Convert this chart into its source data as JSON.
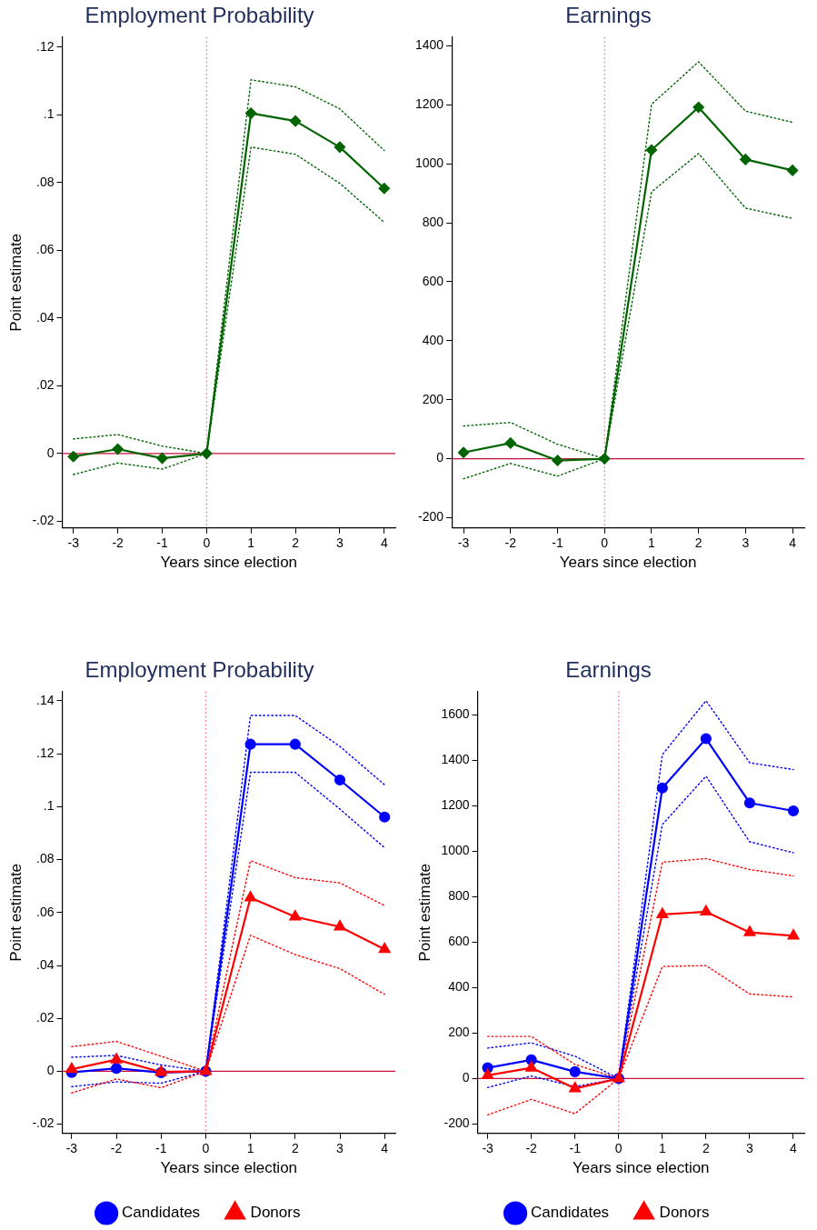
{
  "chart_data": [
    {
      "type": "line",
      "title": "Employment Probability",
      "xlabel": "Years since election",
      "ylabel": "Point estimate",
      "x": [
        -3,
        -2,
        -1,
        0,
        1,
        2,
        3,
        4
      ],
      "xlim": [
        -3.25,
        4.25
      ],
      "xticks": [
        -3,
        -2,
        -1,
        0,
        1,
        2,
        3,
        4
      ],
      "ylim": [
        -0.022,
        0.123
      ],
      "yticks": [
        {
          "value": -0.02,
          "label": "-.02"
        },
        0,
        {
          "value": 0.02,
          "label": ".02"
        },
        {
          "value": 0.04,
          "label": ".04"
        },
        {
          "value": 0.06,
          "label": ".06"
        },
        {
          "value": 0.08,
          "label": ".08"
        },
        {
          "value": 0.1,
          "label": ".1"
        },
        {
          "value": 0.12,
          "label": ".12"
        }
      ],
      "marker": "diamond",
      "line_style": "solid",
      "series": [
        {
          "color": "#006400",
          "values": [
            -0.0009,
            0.0013,
            -0.0014,
            0,
            0.1005,
            0.0982,
            0.0905,
            0.0783
          ]
        },
        {
          "color": "#006400",
          "line_style": "dotted",
          "marker": "none",
          "values": [
            -0.0062,
            -0.0028,
            -0.0046,
            0,
            0.0905,
            0.0884,
            0.0798,
            0.0683
          ]
        },
        {
          "color": "#006400",
          "line_style": "dotted",
          "marker": "none",
          "values": [
            0.0043,
            0.0056,
            0.0022,
            0,
            0.1104,
            0.1083,
            0.1018,
            0.0895
          ]
        }
      ],
      "ref_lines": [
        {
          "axis": "y",
          "value": 0,
          "color": "#c8103c",
          "line_style": "solid"
        },
        {
          "axis": "x",
          "value": 0,
          "color": "#f0607e",
          "line_style": "dotted"
        }
      ]
    },
    {
      "type": "line",
      "title": "Earnings",
      "xlabel": "Years since election",
      "x": [
        -3,
        -2,
        -1,
        0,
        1,
        2,
        3,
        4
      ],
      "xlim": [
        -3.25,
        4.25
      ],
      "xticks": [
        -3,
        -2,
        -1,
        0,
        1,
        2,
        3,
        4
      ],
      "ylim": [
        -235,
        1430
      ],
      "yticks": [
        -200,
        0,
        200,
        400,
        600,
        800,
        1000,
        1200,
        1400
      ],
      "marker": "diamond",
      "line_style": "solid",
      "series": [
        {
          "color": "#006400",
          "values": [
            21,
            53,
            -6,
            0,
            1047,
            1192,
            1015,
            978
          ]
        },
        {
          "color": "#006400",
          "line_style": "dotted",
          "marker": "none",
          "values": [
            -68,
            -16,
            -59,
            0,
            905,
            1035,
            850,
            815
          ]
        },
        {
          "color": "#006400",
          "line_style": "dotted",
          "marker": "none",
          "values": [
            111,
            123,
            49,
            0,
            1202,
            1346,
            1179,
            1141
          ]
        }
      ],
      "ref_lines": [
        {
          "axis": "y",
          "value": 0,
          "color": "#c8103c",
          "line_style": "solid"
        },
        {
          "axis": "x",
          "value": 0,
          "color": "#f0607e",
          "line_style": "dotted"
        }
      ]
    },
    {
      "type": "line",
      "title": "Employment Probability",
      "xlabel": "Years since election",
      "ylabel": "Point estimate",
      "x": [
        -3,
        -2,
        -1,
        0,
        1,
        2,
        3,
        4
      ],
      "xlim": [
        -3.21,
        4.24
      ],
      "xticks": [
        -3,
        -2,
        -1,
        0,
        1,
        2,
        3,
        4
      ],
      "ylim": [
        -0.0235,
        0.1435
      ],
      "yticks": [
        {
          "value": -0.02,
          "label": "-.02"
        },
        0,
        {
          "value": 0.02,
          "label": ".02"
        },
        {
          "value": 0.04,
          "label": ".04"
        },
        {
          "value": 0.06,
          "label": ".06"
        },
        {
          "value": 0.08,
          "label": ".08"
        },
        {
          "value": 0.1,
          "label": ".1"
        },
        {
          "value": 0.12,
          "label": ".12"
        },
        {
          "value": 0.14,
          "label": ".14"
        }
      ],
      "line_style": "solid",
      "legend": "bottom",
      "series": [
        {
          "color": "#0000ff",
          "line_style": "dotted",
          "marker": "none",
          "values": [
            -0.0058,
            -0.004,
            -0.0045,
            0,
            0.113,
            0.113,
            0.0991,
            0.0845
          ]
        },
        {
          "color": "#0000ff",
          "line_style": "dotted",
          "marker": "none",
          "values": [
            0.0053,
            0.006,
            0.0024,
            0,
            0.1345,
            0.1345,
            0.1228,
            0.1083
          ]
        },
        {
          "color": "#ff0000",
          "line_style": "dotted",
          "marker": "none",
          "values": [
            -0.0082,
            -0.0029,
            -0.0062,
            0,
            0.0514,
            0.0441,
            0.0388,
            0.0291
          ]
        },
        {
          "color": "#ff0000",
          "line_style": "dotted",
          "marker": "none",
          "values": [
            0.0093,
            0.0113,
            0.0057,
            0,
            0.0796,
            0.0732,
            0.0712,
            0.0626
          ]
        },
        {
          "name": "Candidates",
          "color": "#0000ff",
          "marker": "circle",
          "values": [
            -0.0004,
            0.0011,
            -0.0005,
            0,
            0.1236,
            0.1236,
            0.1101,
            0.0961
          ]
        },
        {
          "name": "Donors",
          "color": "#ff0000",
          "marker": "triangle",
          "values": [
            0.0008,
            0.0044,
            -0.0003,
            0,
            0.0656,
            0.0584,
            0.0546,
            0.0461
          ]
        }
      ],
      "ref_lines": [
        {
          "axis": "y",
          "value": 0,
          "color": "#c8103c",
          "line_style": "solid"
        },
        {
          "axis": "x",
          "value": 0,
          "color": "#f0607e",
          "line_style": "dotted"
        }
      ]
    },
    {
      "type": "line",
      "title": "Earnings",
      "xlabel": "Years since election",
      "ylabel": "Point estimate",
      "x": [
        -3,
        -2,
        -1,
        0,
        1,
        2,
        3,
        4
      ],
      "xlim": [
        -3.23,
        4.25
      ],
      "xticks": [
        -3,
        -2,
        -1,
        0,
        1,
        2,
        3,
        4
      ],
      "ylim": [
        -242,
        1703
      ],
      "yticks": [
        -200,
        0,
        200,
        400,
        600,
        800,
        1000,
        1200,
        1400,
        1600
      ],
      "line_style": "solid",
      "legend": "bottom",
      "series": [
        {
          "color": "#0000ff",
          "line_style": "dotted",
          "marker": "none",
          "values": [
            -40,
            11,
            -36,
            0,
            1118,
            1331,
            1042,
            994
          ]
        },
        {
          "color": "#0000ff",
          "line_style": "dotted",
          "marker": "none",
          "values": [
            134,
            157,
            98,
            0,
            1426,
            1663,
            1390,
            1360
          ]
        },
        {
          "color": "#ff0000",
          "line_style": "dotted",
          "marker": "none",
          "values": [
            -160,
            -92,
            -155,
            0,
            493,
            497,
            372,
            359
          ]
        },
        {
          "color": "#ff0000",
          "line_style": "dotted",
          "marker": "none",
          "values": [
            185,
            185,
            62,
            0,
            952,
            968,
            920,
            892
          ]
        },
        {
          "name": "Candidates",
          "color": "#0000ff",
          "marker": "circle",
          "values": [
            47,
            82,
            30,
            0,
            1279,
            1496,
            1213,
            1178
          ]
        },
        {
          "name": "Donors",
          "color": "#ff0000",
          "marker": "triangle",
          "values": [
            14,
            47,
            -44,
            0,
            722,
            734,
            643,
            628
          ]
        }
      ],
      "ref_lines": [
        {
          "axis": "y",
          "value": 0,
          "color": "#c8103c",
          "line_style": "solid"
        },
        {
          "axis": "x",
          "value": 0,
          "color": "#f0607e",
          "line_style": "dotted"
        }
      ]
    }
  ]
}
